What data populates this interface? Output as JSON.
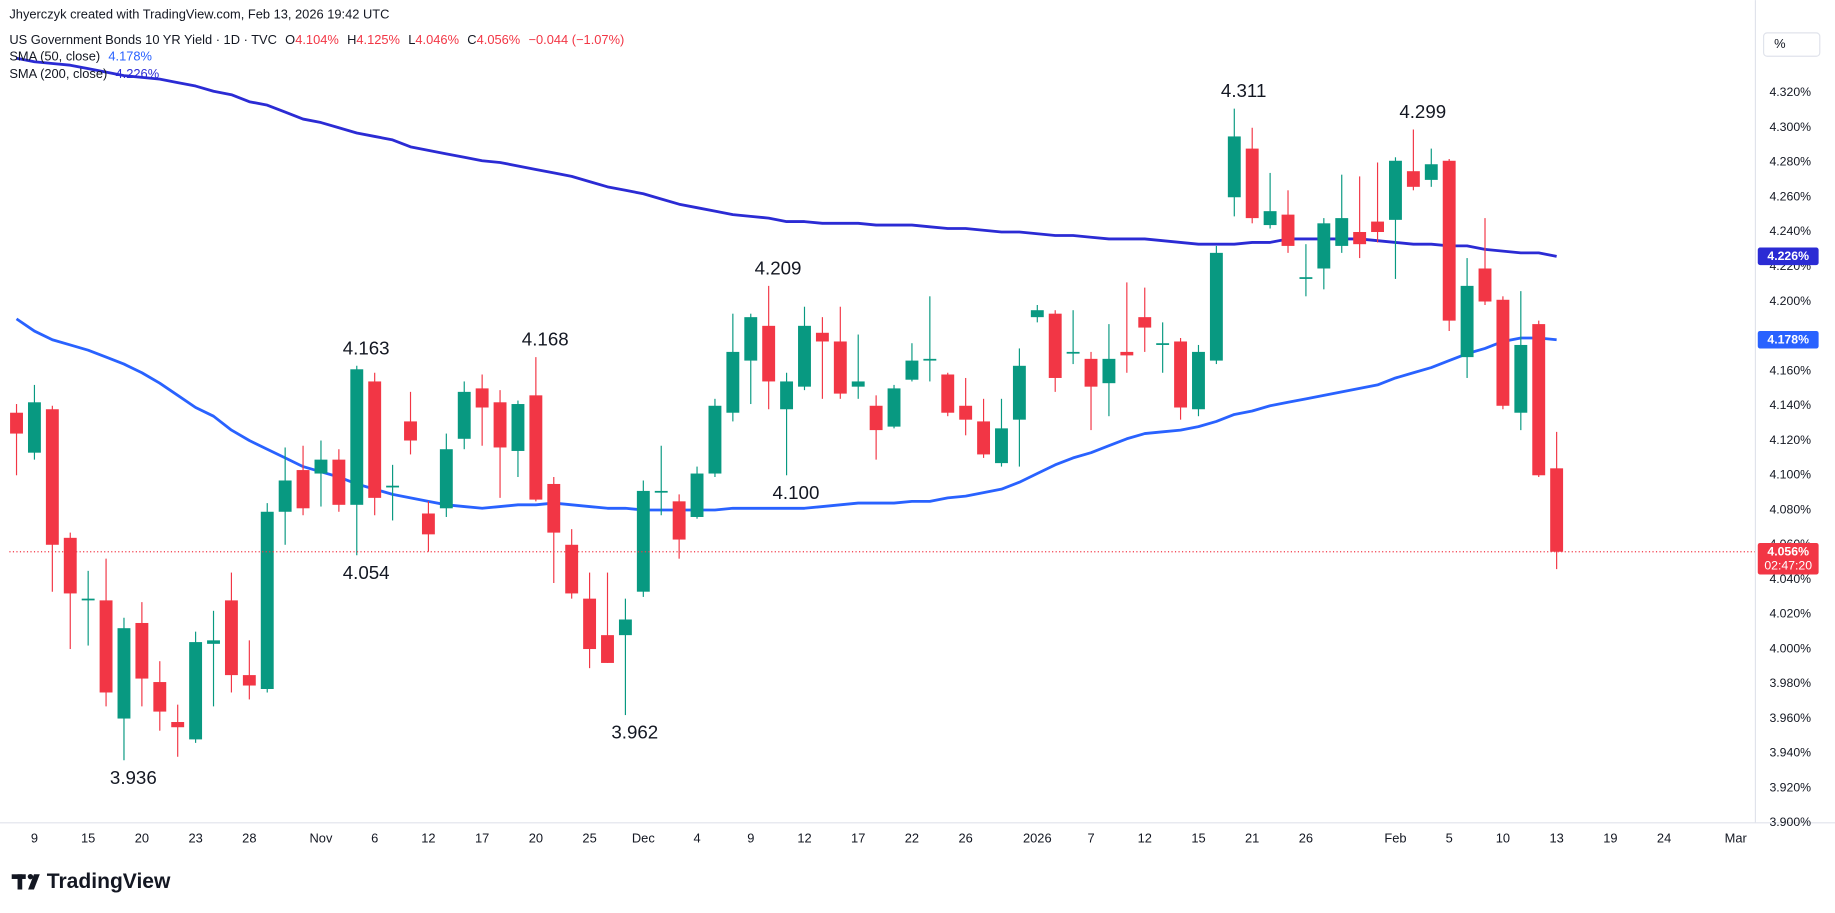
{
  "header": {
    "credit": "Jhyerczyk created with TradingView.com, Feb 13, 2026 19:42 UTC",
    "symbol": "US Government Bonds 10 YR Yield · 1D · TVC",
    "ohlc": [
      {
        "key": "O",
        "value": "4.104%"
      },
      {
        "key": "H",
        "value": "4.125%"
      },
      {
        "key": "L",
        "value": "4.046%"
      },
      {
        "key": "C",
        "value": "4.056%"
      }
    ],
    "change": "−0.044 (−1.07%)",
    "unit_button": "%"
  },
  "footer": {
    "logo": "TradingView"
  },
  "chart_data": {
    "type": "candlestick",
    "up_color": "#089981",
    "down_color": "#f23645",
    "open": [
      4.136,
      4.113,
      4.138,
      4.064,
      4.028,
      4.028,
      3.96,
      4.015,
      3.981,
      3.958,
      3.948,
      4.003,
      4.028,
      3.985,
      3.977,
      4.079,
      4.103,
      4.101,
      4.109,
      4.083,
      4.154,
      4.093,
      4.131,
      4.078,
      4.081,
      4.121,
      4.15,
      4.142,
      4.114,
      4.146,
      4.095,
      4.06,
      4.029,
      4.008,
      4.008,
      4.033,
      4.09,
      4.085,
      4.076,
      4.101,
      4.136,
      4.166,
      4.186,
      4.138,
      4.151,
      4.182,
      4.177,
      4.151,
      4.14,
      4.128,
      4.155,
      4.166,
      4.158,
      4.14,
      4.131,
      4.107,
      4.132,
      4.191,
      4.193,
      4.17,
      4.167,
      4.153,
      4.171,
      4.191,
      4.175,
      4.177,
      4.138,
      4.166,
      4.26,
      4.288,
      4.244,
      4.25,
      4.213,
      4.219,
      4.232,
      4.24,
      4.246,
      4.247,
      4.275,
      4.27,
      4.281,
      4.168,
      4.219,
      4.201,
      4.136,
      4.187,
      4.104
    ],
    "high": [
      4.141,
      4.152,
      4.14,
      4.067,
      4.045,
      4.052,
      4.018,
      4.027,
      3.993,
      3.968,
      4.01,
      4.022,
      4.044,
      4.005,
      4.084,
      4.116,
      4.117,
      4.12,
      4.115,
      4.163,
      4.159,
      4.106,
      4.148,
      4.085,
      4.124,
      4.154,
      4.158,
      4.149,
      4.143,
      4.168,
      4.099,
      4.069,
      4.044,
      4.044,
      4.029,
      4.097,
      4.117,
      4.089,
      4.105,
      4.144,
      4.193,
      4.193,
      4.209,
      4.159,
      4.197,
      4.191,
      4.197,
      4.181,
      4.146,
      4.152,
      4.176,
      4.203,
      4.159,
      4.156,
      4.144,
      4.144,
      4.173,
      4.198,
      4.195,
      4.195,
      4.171,
      4.187,
      4.211,
      4.208,
      4.188,
      4.179,
      4.175,
      4.232,
      4.311,
      4.3,
      4.274,
      4.264,
      4.233,
      4.248,
      4.273,
      4.272,
      4.28,
      4.283,
      4.299,
      4.288,
      4.282,
      4.225,
      4.248,
      4.203,
      4.206,
      4.189,
      4.125
    ],
    "low": [
      4.1,
      4.109,
      4.033,
      4.0,
      4.002,
      3.967,
      3.936,
      3.967,
      3.953,
      3.938,
      3.946,
      3.967,
      3.975,
      3.971,
      3.975,
      4.06,
      4.077,
      4.082,
      4.079,
      4.054,
      4.077,
      4.074,
      4.112,
      4.056,
      4.076,
      4.115,
      4.117,
      4.087,
      4.099,
      4.085,
      4.038,
      4.029,
      3.989,
      3.992,
      3.962,
      4.03,
      4.077,
      4.052,
      4.075,
      4.099,
      4.131,
      4.141,
      4.138,
      4.1,
      4.149,
      4.144,
      4.144,
      4.144,
      4.109,
      4.127,
      4.154,
      4.154,
      4.134,
      4.123,
      4.11,
      4.105,
      4.105,
      4.188,
      4.148,
      4.164,
      4.126,
      4.134,
      4.159,
      4.171,
      4.159,
      4.132,
      4.134,
      4.164,
      4.249,
      4.245,
      4.242,
      4.228,
      4.203,
      4.207,
      4.228,
      4.225,
      4.234,
      4.213,
      4.264,
      4.266,
      4.183,
      4.156,
      4.198,
      4.138,
      4.126,
      4.099,
      4.046
    ],
    "close": [
      4.124,
      4.142,
      4.06,
      4.032,
      4.029,
      3.975,
      4.012,
      3.983,
      3.964,
      3.955,
      4.004,
      4.005,
      3.985,
      3.979,
      4.079,
      4.097,
      4.081,
      4.109,
      4.083,
      4.161,
      4.087,
      4.094,
      4.12,
      4.066,
      4.115,
      4.148,
      4.139,
      4.116,
      4.141,
      4.086,
      4.067,
      4.032,
      4.0,
      3.992,
      4.017,
      4.091,
      4.091,
      4.063,
      4.101,
      4.14,
      4.171,
      4.191,
      4.154,
      4.154,
      4.186,
      4.177,
      4.147,
      4.154,
      4.126,
      4.15,
      4.166,
      4.167,
      4.136,
      4.132,
      4.112,
      4.127,
      4.163,
      4.195,
      4.156,
      4.171,
      4.151,
      4.167,
      4.169,
      4.185,
      4.176,
      4.139,
      4.171,
      4.228,
      4.295,
      4.248,
      4.252,
      4.232,
      4.214,
      4.245,
      4.248,
      4.233,
      4.24,
      4.281,
      4.266,
      4.279,
      4.189,
      4.209,
      4.2,
      4.14,
      4.175,
      4.1,
      4.056
    ],
    "lines": [
      {
        "name": "SMA (50, close)",
        "color": "#2962ff",
        "last_label": "4.178%",
        "values": [
          4.19,
          4.183,
          4.178,
          4.175,
          4.172,
          4.168,
          4.164,
          4.159,
          4.153,
          4.146,
          4.139,
          4.134,
          4.126,
          4.12,
          4.115,
          4.11,
          4.105,
          4.102,
          4.099,
          4.095,
          4.092,
          4.089,
          4.087,
          4.085,
          4.083,
          4.082,
          4.081,
          4.082,
          4.083,
          4.083,
          4.084,
          4.083,
          4.082,
          4.081,
          4.081,
          4.08,
          4.08,
          4.08,
          4.08,
          4.08,
          4.081,
          4.081,
          4.081,
          4.081,
          4.081,
          4.082,
          4.083,
          4.084,
          4.084,
          4.084,
          4.085,
          4.085,
          4.087,
          4.088,
          4.09,
          4.092,
          4.096,
          4.101,
          4.106,
          4.11,
          4.113,
          4.117,
          4.121,
          4.124,
          4.125,
          4.126,
          4.128,
          4.131,
          4.135,
          4.137,
          4.14,
          4.142,
          4.144,
          4.146,
          4.148,
          4.15,
          4.152,
          4.156,
          4.159,
          4.162,
          4.166,
          4.17,
          4.173,
          4.177,
          4.179,
          4.179,
          4.178
        ]
      },
      {
        "name": "SMA (200, close)",
        "color": "#2b2bd4",
        "last_label": "4.226%",
        "values": [
          4.34,
          4.338,
          4.337,
          4.336,
          4.334,
          4.332,
          4.33,
          4.329,
          4.328,
          4.326,
          4.324,
          4.321,
          4.319,
          4.315,
          4.313,
          4.309,
          4.305,
          4.303,
          4.3,
          4.297,
          4.295,
          4.293,
          4.289,
          4.287,
          4.285,
          4.283,
          4.281,
          4.28,
          4.278,
          4.276,
          4.274,
          4.272,
          4.269,
          4.266,
          4.264,
          4.262,
          4.259,
          4.256,
          4.254,
          4.252,
          4.25,
          4.249,
          4.248,
          4.246,
          4.246,
          4.245,
          4.245,
          4.245,
          4.244,
          4.244,
          4.244,
          4.243,
          4.242,
          4.242,
          4.241,
          4.24,
          4.24,
          4.239,
          4.238,
          4.238,
          4.237,
          4.236,
          4.236,
          4.236,
          4.235,
          4.234,
          4.233,
          4.233,
          4.233,
          4.234,
          4.234,
          4.236,
          4.236,
          4.236,
          4.236,
          4.236,
          4.235,
          4.234,
          4.233,
          4.233,
          4.232,
          4.232,
          4.23,
          4.229,
          4.228,
          4.228,
          4.226
        ]
      }
    ],
    "last_price": {
      "value": 4.056,
      "label": "4.056%",
      "countdown": "02:47:20"
    },
    "annotations": [
      {
        "index": 6,
        "side": "low",
        "value": 3.936,
        "label": "3.936"
      },
      {
        "index": 19,
        "side": "high",
        "value": 4.163,
        "label": "4.163"
      },
      {
        "index": 19,
        "side": "low",
        "value": 4.054,
        "label": "4.054"
      },
      {
        "index": 29,
        "side": "high",
        "value": 4.168,
        "label": "4.168"
      },
      {
        "index": 34,
        "side": "low",
        "value": 3.962,
        "label": "3.962"
      },
      {
        "index": 42,
        "side": "high",
        "value": 4.209,
        "label": "4.209"
      },
      {
        "index": 43,
        "side": "low",
        "value": 4.1,
        "label": "4.100"
      },
      {
        "index": 68,
        "side": "high",
        "value": 4.311,
        "label": "4.311"
      },
      {
        "index": 78,
        "side": "high",
        "value": 4.299,
        "label": "4.299"
      }
    ],
    "xlim": [
      -0.4,
      97.1
    ],
    "xticks": [
      {
        "value": 1,
        "label": "9"
      },
      {
        "value": 4,
        "label": "15"
      },
      {
        "value": 7,
        "label": "20"
      },
      {
        "value": 10,
        "label": "23"
      },
      {
        "value": 13,
        "label": "28"
      },
      {
        "value": 17,
        "label": "Nov"
      },
      {
        "value": 20,
        "label": "6"
      },
      {
        "value": 23,
        "label": "12"
      },
      {
        "value": 26,
        "label": "17"
      },
      {
        "value": 29,
        "label": "20"
      },
      {
        "value": 32,
        "label": "25"
      },
      {
        "value": 35,
        "label": "Dec"
      },
      {
        "value": 38,
        "label": "4"
      },
      {
        "value": 41,
        "label": "9"
      },
      {
        "value": 44,
        "label": "12"
      },
      {
        "value": 47,
        "label": "17"
      },
      {
        "value": 50,
        "label": "22"
      },
      {
        "value": 53,
        "label": "26"
      },
      {
        "value": 57,
        "label": "2026"
      },
      {
        "value": 60,
        "label": "7"
      },
      {
        "value": 63,
        "label": "12"
      },
      {
        "value": 66,
        "label": "15"
      },
      {
        "value": 69,
        "label": "21"
      },
      {
        "value": 72,
        "label": "26"
      },
      {
        "value": 77,
        "label": "Feb"
      },
      {
        "value": 80,
        "label": "5"
      },
      {
        "value": 83,
        "label": "10"
      },
      {
        "value": 86,
        "label": "13"
      },
      {
        "value": 89,
        "label": "19"
      },
      {
        "value": 92,
        "label": "24"
      },
      {
        "value": 96,
        "label": "Mar"
      }
    ],
    "ylim": [
      3.9,
      4.36
    ],
    "yticks": [
      {
        "value": 3.9,
        "label": "3.900%"
      },
      {
        "value": 3.92,
        "label": "3.920%"
      },
      {
        "value": 3.94,
        "label": "3.940%"
      },
      {
        "value": 3.96,
        "label": "3.960%"
      },
      {
        "value": 3.98,
        "label": "3.980%"
      },
      {
        "value": 4.0,
        "label": "4.000%"
      },
      {
        "value": 4.02,
        "label": "4.020%"
      },
      {
        "value": 4.04,
        "label": "4.040%"
      },
      {
        "value": 4.06,
        "label": "4.060%"
      },
      {
        "value": 4.08,
        "label": "4.080%"
      },
      {
        "value": 4.1,
        "label": "4.100%"
      },
      {
        "value": 4.12,
        "label": "4.120%"
      },
      {
        "value": 4.14,
        "label": "4.140%"
      },
      {
        "value": 4.16,
        "label": "4.160%"
      },
      {
        "value": 4.18,
        "label": "4.180%"
      },
      {
        "value": 4.2,
        "label": "4.200%"
      },
      {
        "value": 4.22,
        "label": "4.220%"
      },
      {
        "value": 4.24,
        "label": "4.240%"
      },
      {
        "value": 4.26,
        "label": "4.260%"
      },
      {
        "value": 4.28,
        "label": "4.280%"
      },
      {
        "value": 4.3,
        "label": "4.300%"
      },
      {
        "value": 4.32,
        "label": "4.320%"
      }
    ],
    "grid": false
  }
}
